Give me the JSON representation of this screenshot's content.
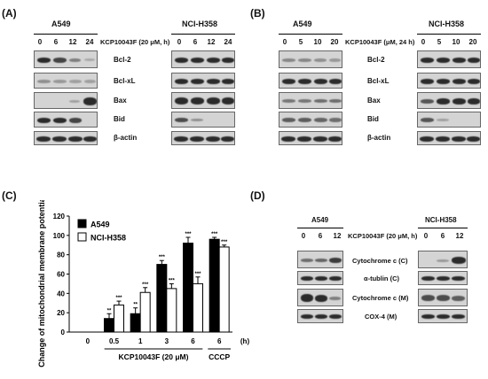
{
  "panelA": {
    "label": "(A)",
    "cell_left": "A549",
    "cell_right": "NCI-H358",
    "lanes": [
      "0",
      "6",
      "12",
      "24"
    ],
    "treatment": "KCP10043F (20 μM, h)",
    "proteins": [
      "Bcl-2",
      "Bcl-xL",
      "Bax",
      "Bid",
      "β-actin"
    ]
  },
  "panelB": {
    "label": "(B)",
    "cell_left": "A549",
    "cell_right": "NCI-H358",
    "lanes": [
      "0",
      "5",
      "10",
      "20"
    ],
    "treatment": "KCP10043F (μM, 24 h)",
    "proteins": [
      "Bcl-2",
      "Bcl-xL",
      "Bax",
      "Bid",
      "β-actin"
    ]
  },
  "panelC": {
    "label": "(C)",
    "chart_data": {
      "type": "bar",
      "ylabel": "Change of mitochondrial membrane potential (%)",
      "ylim": [
        0,
        120
      ],
      "yticks": [
        "0",
        "20",
        "40",
        "60",
        "80",
        "100",
        "120"
      ],
      "categories": [
        "0",
        "0.5",
        "1",
        "3",
        "6",
        "6"
      ],
      "group_labels": [
        "KCP10043F (20 μM)",
        "CCCP"
      ],
      "x_unit": "(h)",
      "series": [
        {
          "name": "A549",
          "color": "#000000",
          "values": [
            0,
            14,
            19,
            70,
            92,
            96
          ],
          "errors": [
            0,
            5,
            6,
            4,
            6,
            2
          ],
          "sig": [
            "",
            "**",
            "**",
            "***",
            "***",
            "***"
          ]
        },
        {
          "name": "NCI-H358",
          "color": "#ffffff",
          "values": [
            0,
            28,
            41,
            45,
            50,
            88
          ],
          "errors": [
            0,
            4,
            5,
            5,
            7,
            2
          ],
          "sig": [
            "",
            "***",
            "***",
            "***",
            "***",
            "***"
          ]
        }
      ]
    }
  },
  "panelD": {
    "label": "(D)",
    "cell_left": "A549",
    "cell_right": "NCI-H358",
    "lanes": [
      "0",
      "6",
      "12"
    ],
    "treatment": "KCP10043F (20 μM, h)",
    "proteins": [
      "Cytochrome c (C)",
      "α-tublin (C)",
      "Cytochrome c (M)",
      "COX-4 (M)"
    ]
  }
}
